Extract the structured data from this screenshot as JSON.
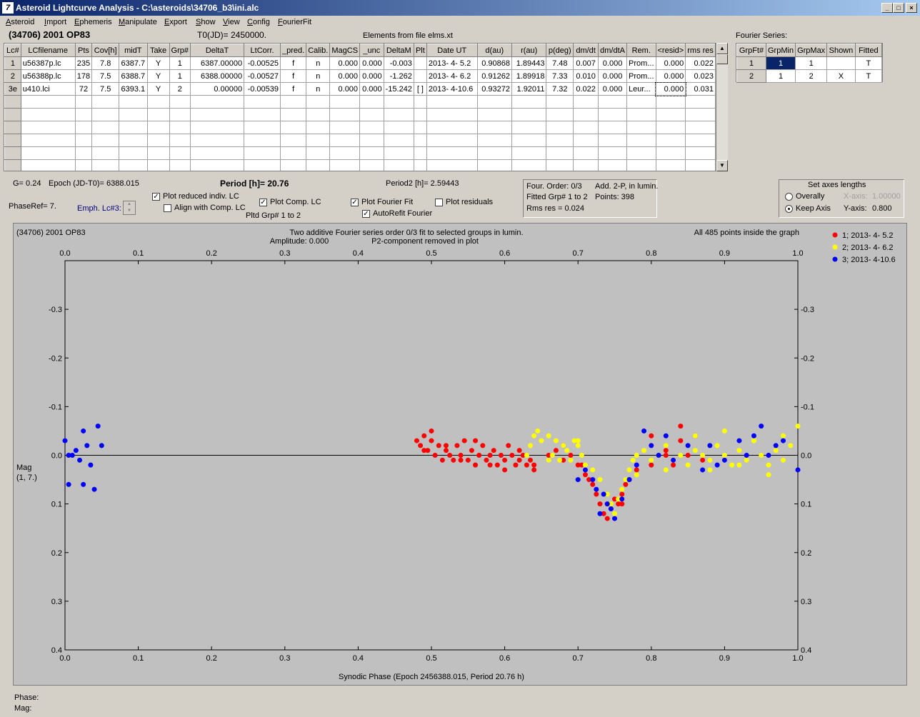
{
  "window": {
    "title": "Asteroid Lightcurve Analysis - C:\\asteroids\\34706_b3\\ini.alc",
    "minimize": "_",
    "restore": "□",
    "close": "×"
  },
  "menu": [
    "Asteroid",
    "Import",
    "Ephemeris",
    "Manipulate",
    "Export",
    "Show",
    "View",
    "Config",
    "FourierFit"
  ],
  "header": {
    "asteroid": "(34706) 2001 OP83",
    "t0": "T0(JD)= 2450000.",
    "elements": "Elements from file elms.xt",
    "fourier_title": "Fourier Series:"
  },
  "lc_table": {
    "columns": [
      "Lc#",
      "LCfilename",
      "Pts",
      "Cov[h]",
      "midT",
      "Take",
      "Grp#",
      "DeltaT",
      "LtCorr.",
      "_pred.",
      "Calib.",
      "MagCS",
      "_unc",
      "DeltaM",
      "Plt",
      "Date UT",
      "d(au)",
      "r(au)",
      "p(deg)",
      "dm/dt",
      "dm/dtA",
      "Rem.",
      "<resid>",
      "rms res"
    ],
    "rows": [
      [
        "1",
        "u56387p.lc",
        "235",
        "7.8",
        "6387.7",
        "Y",
        "1",
        "6387.00000",
        "-0.00525",
        "f",
        "n",
        "0.000",
        "0.000",
        "-0.003",
        "",
        "2013- 4- 5.2",
        "0.90868",
        "1.89443",
        "7.48",
        "0.007",
        "0.000",
        "Prom...",
        "0.000",
        "0.022"
      ],
      [
        "2",
        "u56388p.lc",
        "178",
        "7.5",
        "6388.7",
        "Y",
        "1",
        "6388.00000",
        "-0.00527",
        "f",
        "n",
        "0.000",
        "0.000",
        "-1.262",
        "",
        "2013- 4- 6.2",
        "0.91262",
        "1.89918",
        "7.33",
        "0.010",
        "0.000",
        "Prom...",
        "0.000",
        "0.023"
      ],
      [
        "3e",
        "u410.lci",
        "72",
        "7.5",
        "6393.1",
        "Y",
        "2",
        "0.00000",
        "-0.00539",
        "f",
        "n",
        "0.000",
        "0.000",
        "-15.242",
        "[ ]",
        "2013- 4-10.6",
        "0.93272",
        "1.92011",
        "7.32",
        "0.022",
        "0.000",
        "Leur...",
        "0.000",
        "0.031"
      ]
    ]
  },
  "fourier_table": {
    "columns": [
      "GrpFt#",
      "GrpMin",
      "GrpMax",
      "Shown",
      "Fitted"
    ],
    "rows": [
      [
        "1",
        "1",
        "1",
        "",
        "T"
      ],
      [
        "2",
        "1",
        "2",
        "X",
        "T"
      ]
    ]
  },
  "info": {
    "g": "G= 0.24",
    "epoch": "Epoch (JD-T0)= 6388.015",
    "period": "Period [h]= 20.76",
    "period2": "Period2 [h]= 2.59443",
    "phaseref": "PhaseRef= 7.",
    "emph": "Emph. Lc#3:"
  },
  "checks": {
    "reduced": "Plot reduced indiv. LC",
    "align": "Align with Comp. LC",
    "comp": "Plot Comp. LC",
    "fourier": "Plot Fourier Fit",
    "residuals": "Plot residuals",
    "autorefit": "AutoRefit Fourier",
    "pltd": "Pltd Grp#  1   to   2"
  },
  "fit_box": {
    "order": "Four. Order:  0/3",
    "add": "Add. 2-P, in lumin.",
    "fitted": "Fitted Grp# 1 to 2",
    "points": "Points: 398",
    "rms": "Rms res     = 0.024"
  },
  "axes_box": {
    "title": "Set axes lengths",
    "overally": "Overally",
    "keep": "Keep Axis",
    "xaxis": "X-axis:",
    "xval": "1.00000",
    "yaxis": "Y-axis:",
    "yval": "0.800"
  },
  "status": {
    "phase": "Phase:",
    "mag": "Mag:"
  },
  "chart_data": {
    "type": "scatter",
    "title_left": "(34706) 2001 OP83",
    "title_center1": "Two additive Fourier series order 0/3 fit to selected groups in lumin.",
    "title_center2": "Amplitude: 0.000",
    "title_center3": "P2-component removed in plot",
    "title_right": "All 485 points inside the graph",
    "xlabel": "Synodic Phase (Epoch 2456388.015, Period 20.76 h)",
    "ylabel1": "Mag",
    "ylabel2": "(1, 7.)",
    "xlim": [
      0,
      1
    ],
    "ylim": [
      -0.4,
      0.4
    ],
    "y_inverted": true,
    "xticks": [
      "0.0",
      "0.1",
      "0.2",
      "0.3",
      "0.4",
      "0.5",
      "0.6",
      "0.7",
      "0.8",
      "0.9",
      "1.0"
    ],
    "yticks": [
      "-0.3",
      "-0.2",
      "-0.1",
      "0.0",
      "0.1",
      "0.2",
      "0.3",
      "0.4"
    ],
    "fit_line": 0.0,
    "series": [
      {
        "name": "1; 2013- 4- 5.2",
        "color": "#ff0000",
        "x": [
          0.48,
          0.485,
          0.49,
          0.495,
          0.5,
          0.505,
          0.51,
          0.515,
          0.52,
          0.525,
          0.53,
          0.535,
          0.54,
          0.545,
          0.55,
          0.555,
          0.56,
          0.565,
          0.57,
          0.575,
          0.58,
          0.585,
          0.59,
          0.595,
          0.6,
          0.605,
          0.61,
          0.615,
          0.62,
          0.625,
          0.63,
          0.635,
          0.64,
          0.66,
          0.67,
          0.68,
          0.69,
          0.7,
          0.705,
          0.71,
          0.715,
          0.72,
          0.725,
          0.73,
          0.735,
          0.74,
          0.745,
          0.75,
          0.755,
          0.76,
          0.765,
          0.77,
          0.78,
          0.8,
          0.81,
          0.82,
          0.83,
          0.84,
          0.85,
          0.86,
          0.87,
          0.49,
          0.5,
          0.52,
          0.54,
          0.56,
          0.58,
          0.6,
          0.62,
          0.64,
          0.68,
          0.72,
          0.74,
          0.76,
          0.8,
          0.82,
          0.84
        ],
        "y": [
          -0.03,
          -0.02,
          -0.04,
          -0.01,
          -0.03,
          0.0,
          -0.02,
          0.01,
          -0.01,
          0.0,
          0.01,
          -0.02,
          0.0,
          -0.03,
          0.01,
          -0.01,
          0.02,
          0.0,
          -0.02,
          0.01,
          0.0,
          -0.01,
          0.02,
          0.0,
          0.01,
          -0.02,
          0.0,
          0.02,
          0.01,
          0.0,
          0.02,
          0.01,
          0.03,
          0.0,
          -0.01,
          0.01,
          0.0,
          0.02,
          0.02,
          0.04,
          0.05,
          0.06,
          0.08,
          0.1,
          0.12,
          0.13,
          0.11,
          0.09,
          0.1,
          0.08,
          0.06,
          0.05,
          0.03,
          0.02,
          0.0,
          -0.01,
          0.02,
          -0.03,
          0.0,
          -0.04,
          0.01,
          -0.01,
          -0.05,
          -0.02,
          0.01,
          -0.03,
          0.02,
          0.03,
          -0.01,
          0.02,
          -0.02,
          0.05,
          0.1,
          0.1,
          -0.04,
          0.0,
          -0.06
        ]
      },
      {
        "name": "2; 2013- 4- 6.2",
        "color": "#ffff00",
        "x": [
          0.63,
          0.635,
          0.64,
          0.645,
          0.65,
          0.66,
          0.665,
          0.67,
          0.675,
          0.68,
          0.685,
          0.69,
          0.695,
          0.7,
          0.705,
          0.71,
          0.72,
          0.73,
          0.74,
          0.745,
          0.75,
          0.755,
          0.76,
          0.765,
          0.77,
          0.775,
          0.78,
          0.79,
          0.8,
          0.81,
          0.82,
          0.83,
          0.84,
          0.85,
          0.86,
          0.87,
          0.88,
          0.89,
          0.9,
          0.91,
          0.92,
          0.93,
          0.94,
          0.95,
          0.96,
          0.97,
          0.98,
          0.99,
          1.0,
          0.86,
          0.88,
          0.9,
          0.92,
          0.94,
          0.96,
          0.98,
          0.66,
          0.7,
          0.78,
          0.82
        ],
        "y": [
          0.0,
          -0.02,
          -0.04,
          -0.05,
          -0.03,
          -0.04,
          0.0,
          -0.03,
          0.01,
          -0.02,
          -0.01,
          0.01,
          -0.03,
          -0.02,
          0.0,
          0.02,
          0.03,
          0.05,
          0.08,
          0.1,
          0.12,
          0.09,
          0.07,
          0.05,
          0.03,
          0.01,
          0.0,
          -0.01,
          0.01,
          0.0,
          -0.02,
          0.01,
          0.0,
          0.02,
          -0.01,
          0.0,
          0.01,
          -0.02,
          0.0,
          0.02,
          -0.01,
          0.01,
          -0.03,
          0.0,
          0.02,
          -0.01,
          0.01,
          -0.02,
          -0.06,
          -0.04,
          0.03,
          -0.05,
          0.02,
          -0.03,
          0.04,
          -0.04,
          0.01,
          -0.03,
          0.04,
          0.03
        ]
      },
      {
        "name": "3; 2013- 4-10.6",
        "color": "#0000ff",
        "x": [
          0.0,
          0.005,
          0.01,
          0.015,
          0.02,
          0.025,
          0.03,
          0.035,
          0.04,
          0.045,
          0.05,
          0.005,
          0.025,
          0.7,
          0.71,
          0.72,
          0.725,
          0.73,
          0.735,
          0.74,
          0.745,
          0.75,
          0.76,
          0.77,
          0.78,
          0.79,
          0.8,
          0.81,
          0.82,
          0.83,
          0.85,
          0.87,
          0.88,
          0.9,
          0.92,
          0.94,
          0.95,
          0.96,
          0.98,
          1.0,
          0.89,
          0.93,
          0.97
        ],
        "y": [
          -0.03,
          0.06,
          0.0,
          -0.01,
          0.01,
          0.06,
          -0.02,
          0.02,
          0.07,
          -0.06,
          -0.02,
          0.0,
          -0.05,
          0.05,
          0.03,
          0.05,
          0.07,
          0.12,
          0.08,
          0.1,
          0.11,
          0.13,
          0.09,
          0.05,
          0.02,
          -0.05,
          -0.02,
          0.0,
          -0.04,
          0.01,
          -0.02,
          0.03,
          -0.02,
          0.01,
          -0.03,
          -0.04,
          -0.06,
          0.0,
          -0.03,
          0.03,
          0.02,
          0.0,
          -0.02
        ]
      }
    ]
  }
}
